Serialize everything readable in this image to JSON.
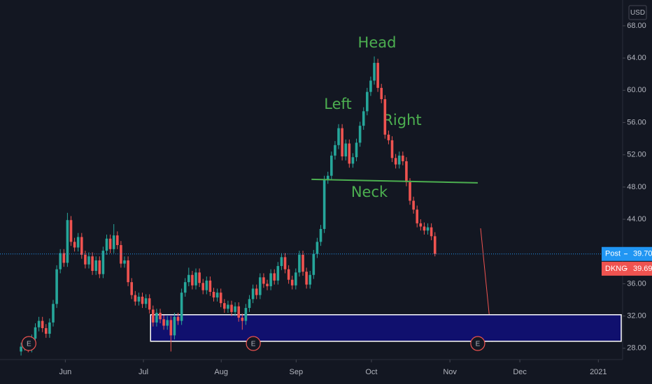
{
  "chart_data": {
    "type": "candlestick",
    "currency": "USD",
    "up_color": "#26a69a",
    "down_color": "#ef5350",
    "open": [
      27.6,
      28.2,
      28.6,
      28.0,
      29.2,
      30.6,
      31.4,
      30.5,
      29.8,
      31.2,
      33.5,
      37.8,
      39.8,
      38.6,
      43.9,
      41.2,
      40.5,
      41.8,
      39.6,
      38.4,
      39.4,
      37.6,
      38.9,
      37.2,
      40.1,
      41.6,
      40.3,
      42.0,
      40.8,
      38.5,
      38.9,
      36.2,
      34.6,
      33.8,
      34.4,
      33.5,
      34.2,
      32.8,
      31.2,
      32.4,
      31.6,
      30.8,
      31.5,
      29.6,
      31.9,
      31.4,
      34.9,
      36.2,
      37.1,
      35.8,
      37.4,
      36.1,
      35.2,
      36.4,
      35.0,
      34.3,
      34.9,
      33.6,
      32.9,
      33.4,
      32.5,
      33.2,
      31.8,
      31.4,
      33.0,
      34.1,
      35.4,
      34.6,
      36.8,
      36.0,
      35.7,
      37.3,
      36.4,
      38.2,
      39.3,
      37.8,
      36.5,
      35.8,
      37.4,
      39.6,
      37.5,
      35.9,
      37.1,
      39.7,
      41.2,
      42.8,
      48.9,
      49.4,
      51.9,
      53.2,
      55.3,
      51.8,
      53.4,
      50.9,
      51.7,
      53.5,
      55.6,
      57.4,
      59.8,
      61.2,
      63.4,
      60.3,
      58.9,
      54.5,
      53.8,
      51.6,
      50.8,
      51.9,
      51.2,
      48.6,
      46.3,
      45.2,
      43.5,
      43.1,
      42.6,
      43.0,
      41.9
    ],
    "high": [
      28.7,
      29.1,
      29.1,
      29.7,
      31.1,
      31.9,
      31.9,
      31.0,
      31.7,
      34.0,
      38.3,
      40.3,
      40.3,
      44.8,
      44.4,
      41.7,
      42.3,
      42.3,
      40.1,
      39.9,
      39.9,
      39.4,
      39.4,
      40.6,
      42.1,
      42.1,
      43.4,
      42.5,
      41.3,
      39.4,
      39.4,
      36.7,
      35.1,
      34.9,
      34.9,
      34.7,
      34.7,
      33.3,
      32.9,
      32.9,
      32.1,
      32.0,
      32.0,
      32.4,
      32.4,
      35.4,
      36.7,
      38.0,
      37.6,
      37.9,
      37.9,
      36.6,
      36.9,
      36.9,
      35.5,
      35.4,
      35.4,
      34.1,
      33.9,
      33.9,
      33.7,
      33.7,
      32.3,
      33.5,
      34.6,
      35.9,
      35.9,
      37.3,
      37.3,
      36.5,
      37.8,
      37.8,
      38.7,
      39.8,
      39.8,
      38.3,
      37.0,
      37.9,
      40.1,
      40.1,
      38.0,
      37.6,
      40.2,
      41.7,
      43.3,
      49.4,
      49.9,
      52.4,
      53.7,
      55.8,
      55.8,
      53.9,
      53.9,
      52.2,
      54.0,
      56.1,
      57.9,
      60.3,
      61.7,
      64.2,
      63.9,
      60.8,
      59.4,
      55.0,
      54.3,
      52.1,
      52.4,
      52.4,
      51.7,
      49.1,
      46.8,
      45.7,
      44.0,
      43.6,
      43.5,
      43.5,
      42.4
    ],
    "low": [
      27.1,
      27.7,
      27.5,
      27.5,
      28.7,
      30.1,
      30.0,
      29.3,
      29.3,
      30.7,
      33.0,
      37.3,
      38.1,
      38.1,
      40.7,
      40.0,
      40.0,
      39.1,
      37.9,
      37.9,
      37.1,
      37.1,
      36.7,
      36.7,
      39.6,
      39.8,
      39.8,
      40.3,
      38.0,
      38.0,
      35.7,
      34.1,
      33.3,
      33.3,
      33.0,
      33.0,
      32.3,
      30.7,
      30.7,
      31.1,
      30.3,
      30.3,
      27.6,
      29.1,
      30.9,
      30.9,
      34.4,
      35.7,
      35.3,
      35.3,
      35.6,
      34.7,
      34.7,
      34.5,
      33.8,
      33.8,
      33.1,
      32.4,
      32.4,
      32.0,
      32.0,
      31.3,
      30.3,
      30.9,
      32.5,
      33.6,
      34.1,
      34.1,
      35.5,
      35.2,
      35.2,
      35.9,
      35.9,
      37.7,
      37.3,
      36.0,
      35.3,
      35.3,
      36.9,
      37.0,
      35.4,
      35.4,
      36.6,
      39.2,
      40.7,
      42.3,
      48.4,
      48.9,
      51.4,
      52.7,
      51.3,
      51.3,
      50.4,
      50.4,
      51.2,
      53.0,
      55.1,
      56.9,
      59.3,
      60.7,
      59.8,
      58.4,
      54.0,
      53.3,
      51.1,
      50.3,
      50.3,
      50.7,
      48.1,
      45.8,
      44.7,
      43.0,
      42.6,
      42.1,
      42.1,
      41.4,
      39.4
    ],
    "close": [
      28.2,
      28.6,
      28.0,
      29.2,
      30.6,
      31.4,
      30.5,
      29.8,
      31.2,
      33.5,
      37.8,
      39.8,
      38.6,
      43.9,
      41.2,
      40.5,
      41.8,
      39.6,
      38.4,
      39.4,
      37.6,
      38.9,
      37.2,
      40.1,
      41.6,
      40.3,
      42.0,
      40.8,
      38.5,
      38.9,
      36.2,
      34.6,
      33.8,
      34.4,
      33.5,
      34.2,
      32.8,
      31.2,
      32.4,
      31.6,
      30.8,
      31.5,
      29.6,
      31.9,
      31.4,
      34.9,
      36.2,
      37.1,
      35.8,
      37.4,
      36.1,
      35.2,
      36.4,
      35.0,
      34.3,
      34.9,
      33.6,
      32.9,
      33.4,
      32.5,
      33.2,
      31.8,
      31.4,
      33.0,
      34.1,
      35.4,
      34.6,
      36.8,
      36.0,
      35.7,
      37.3,
      36.4,
      38.2,
      39.3,
      37.8,
      36.5,
      35.8,
      37.4,
      39.6,
      37.5,
      35.9,
      37.1,
      39.7,
      41.2,
      42.8,
      48.9,
      49.4,
      51.9,
      53.2,
      55.3,
      51.8,
      53.4,
      50.9,
      51.7,
      53.5,
      55.6,
      57.4,
      59.8,
      61.2,
      63.4,
      60.3,
      58.9,
      54.5,
      53.8,
      51.6,
      50.8,
      51.9,
      51.2,
      48.6,
      46.3,
      45.2,
      43.5,
      43.1,
      42.6,
      43.0,
      41.9,
      39.7
    ],
    "xlim": [
      -5.9,
      168.6
    ],
    "xticks": [
      {
        "value": 12.4,
        "label": "Jun"
      },
      {
        "value": 34.3,
        "label": "Jul"
      },
      {
        "value": 56.1,
        "label": "Aug"
      },
      {
        "value": 77.1,
        "label": "Sep"
      },
      {
        "value": 98.2,
        "label": "Oct"
      },
      {
        "value": 120.2,
        "label": "Nov"
      },
      {
        "value": 139.8,
        "label": "Dec"
      },
      {
        "value": 161.8,
        "label": "2021"
      }
    ],
    "ylim": [
      26.6,
      71.2
    ],
    "yticks": [
      {
        "value": 28,
        "label": "28.00"
      },
      {
        "value": 32,
        "label": "32.00"
      },
      {
        "value": 36,
        "label": "36.00"
      },
      {
        "value": 40,
        "label": "40.00"
      },
      {
        "value": 44,
        "label": "44.00"
      },
      {
        "value": 48,
        "label": "48.00"
      },
      {
        "value": 52,
        "label": "52.00"
      },
      {
        "value": 56,
        "label": "56.00"
      },
      {
        "value": 60,
        "label": "60.00"
      },
      {
        "value": 64,
        "label": "64.00"
      },
      {
        "value": 68,
        "label": "68.00"
      }
    ],
    "last_prices": [
      {
        "name": "Post",
        "value": 39.7,
        "label": "39.70",
        "color": "#2196f3"
      },
      {
        "name": "DKNG",
        "value": 39.69,
        "label": "39.69",
        "color": "#ef5350"
      }
    ],
    "neckline": {
      "x": [
        81.4,
        128.0
      ],
      "y": [
        48.95,
        48.52
      ],
      "color": "#4caf50"
    },
    "zone": {
      "x": 36.3,
      "top": 32.16,
      "bottom": 28.87,
      "color": "#10106e"
    },
    "earnings_markers": [
      {
        "x": 2.2,
        "label": "E"
      },
      {
        "x": 65.1,
        "label": "E"
      },
      {
        "x": 128.0,
        "label": "E"
      }
    ],
    "annotations": [
      {
        "text": "Head"
      },
      {
        "text": "Left"
      },
      {
        "text": "Right"
      },
      {
        "text": "Neck"
      }
    ]
  }
}
